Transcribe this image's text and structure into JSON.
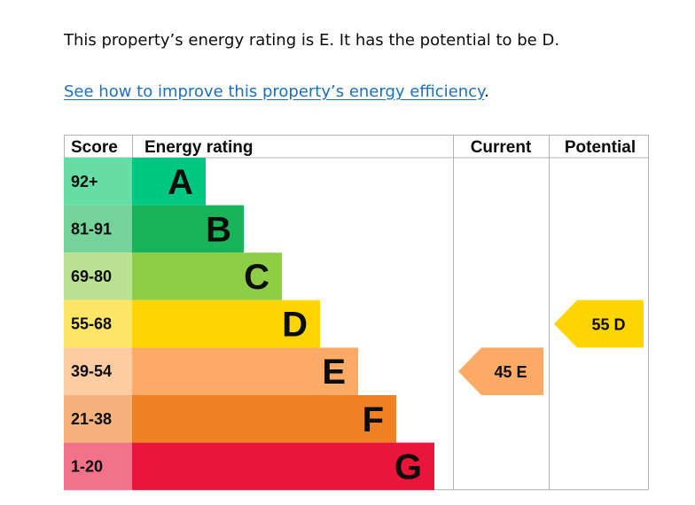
{
  "intro_text": "This property’s energy rating is E. It has the potential to be D.",
  "improve_link": {
    "text": "See how to improve this property’s energy efficiency",
    "suffix": "."
  },
  "chart_data": {
    "type": "table",
    "headers": {
      "score": "Score",
      "rating": "Energy rating",
      "current": "Current",
      "potential": "Potential"
    },
    "bands": [
      {
        "score": "92+",
        "letter": "A",
        "color": "#00c781",
        "light": "#66dda5",
        "letter_color": "#0b0c0c"
      },
      {
        "score": "81-91",
        "letter": "B",
        "color": "#19b459",
        "light": "#75d29b",
        "letter_color": "#0b0c0c"
      },
      {
        "score": "69-80",
        "letter": "C",
        "color": "#8dce46",
        "light": "#bbe290",
        "letter_color": "#0b0c0c"
      },
      {
        "score": "55-68",
        "letter": "D",
        "color": "#ffd500",
        "light": "#ffe666",
        "letter_color": "#0b0c0c"
      },
      {
        "score": "39-54",
        "letter": "E",
        "color": "#fcaa65",
        "light": "#fdcca3",
        "letter_color": "#0b0c0c"
      },
      {
        "score": "21-38",
        "letter": "F",
        "color": "#ef8023",
        "light": "#f5b37b",
        "letter_color": "#0b0c0c"
      },
      {
        "score": "1-20",
        "letter": "G",
        "color": "#e9153b",
        "light": "#f27389",
        "letter_color": "#0b0c0c"
      }
    ],
    "current": {
      "value": 45,
      "letter": "E",
      "label": "45 E",
      "color": "#fcaa65"
    },
    "potential": {
      "value": 55,
      "letter": "D",
      "label": "55 D",
      "color": "#ffd500"
    }
  }
}
